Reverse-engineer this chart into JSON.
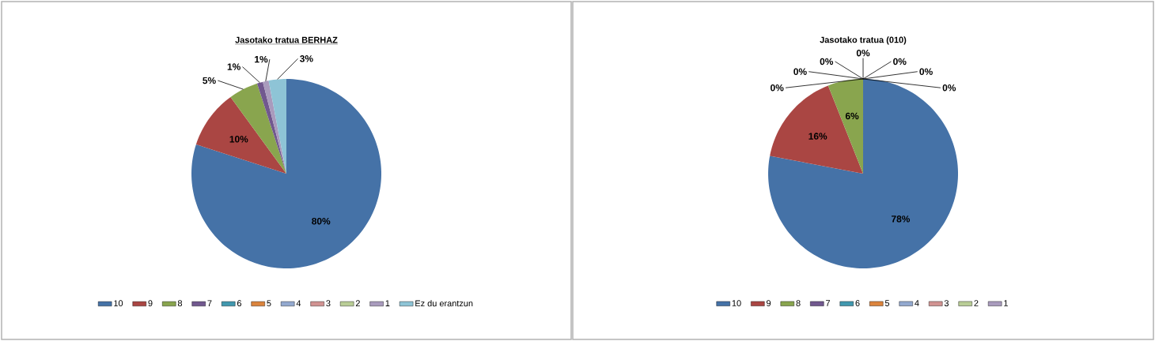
{
  "chart_data": [
    {
      "type": "pie",
      "title": "Jasotako tratua BERHAZ",
      "categories": [
        "10",
        "9",
        "8",
        "7",
        "6",
        "5",
        "4",
        "3",
        "2",
        "1",
        "Ez du erantzun"
      ],
      "values": [
        80,
        10,
        5,
        1,
        0,
        0,
        0,
        0,
        0,
        1,
        3
      ],
      "value_labels": [
        "80%",
        "10%",
        "5%",
        "1%",
        null,
        null,
        null,
        null,
        null,
        "1%",
        "3%"
      ],
      "colors": [
        "#4572a7",
        "#aa4643",
        "#89a54e",
        "#71588f",
        "#4198af",
        "#db843d",
        "#93a9cf",
        "#d19392",
        "#b9cd96",
        "#a99bbd",
        "#8ec4d6"
      ],
      "legend": "bottom"
    },
    {
      "type": "pie",
      "title": "Jasotako tratua (010)",
      "categories": [
        "10",
        "9",
        "8",
        "7",
        "6",
        "5",
        "4",
        "3",
        "2",
        "1"
      ],
      "values": [
        78,
        16,
        6,
        0,
        0,
        0,
        0,
        0,
        0,
        0
      ],
      "value_labels": [
        "78%",
        "16%",
        "6%",
        "0%",
        "0%",
        "0%",
        "0%",
        "0%",
        "0%",
        "0%"
      ],
      "colors": [
        "#4572a7",
        "#aa4643",
        "#89a54e",
        "#71588f",
        "#4198af",
        "#db843d",
        "#93a9cf",
        "#d19392",
        "#b9cd96",
        "#a99bbd"
      ],
      "legend": "bottom"
    }
  ]
}
